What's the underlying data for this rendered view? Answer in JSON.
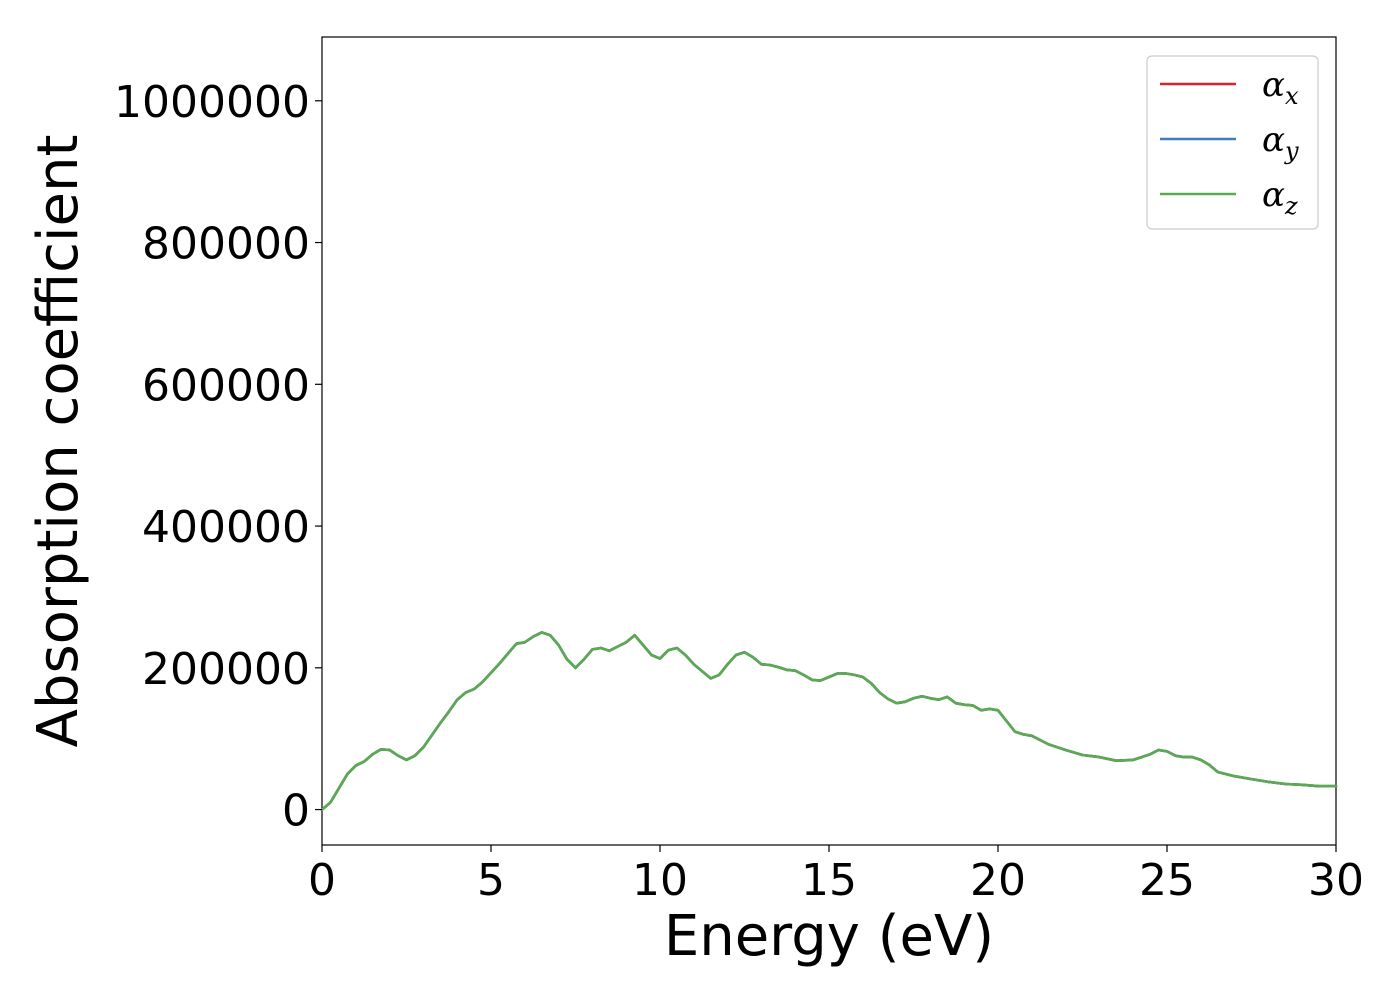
{
  "chart_data": {
    "type": "line",
    "xlabel": "Energy (eV)",
    "ylabel": "Absorption coefficient",
    "xlim": [
      0,
      30
    ],
    "ylim": [
      -50000,
      1090000
    ],
    "xticks": [
      0,
      5,
      10,
      15,
      20,
      25,
      30
    ],
    "xtick_labels": [
      "0",
      "5",
      "10",
      "15",
      "20",
      "25",
      "30"
    ],
    "yticks": [
      0,
      200000,
      400000,
      600000,
      800000,
      1000000
    ],
    "ytick_labels": [
      "0",
      "200000",
      "400000",
      "600000",
      "800000",
      "1000000"
    ],
    "grid": false,
    "legend_position": "top-right",
    "x": [
      0,
      0.25,
      0.5,
      0.75,
      1.0,
      1.25,
      1.5,
      1.75,
      2.0,
      2.25,
      2.5,
      2.75,
      3.0,
      3.25,
      3.5,
      3.75,
      4.0,
      4.25,
      4.5,
      4.75,
      5.0,
      5.25,
      5.5,
      5.75,
      6.0,
      6.25,
      6.5,
      6.75,
      7.0,
      7.25,
      7.5,
      7.75,
      8.0,
      8.25,
      8.5,
      8.75,
      9.0,
      9.25,
      9.5,
      9.75,
      10.0,
      10.25,
      10.5,
      10.75,
      11.0,
      11.25,
      11.5,
      11.75,
      12.0,
      12.25,
      12.5,
      12.75,
      13.0,
      13.25,
      13.5,
      13.75,
      14.0,
      14.25,
      14.5,
      14.75,
      15.0,
      15.25,
      15.5,
      15.75,
      16.0,
      16.25,
      16.5,
      16.75,
      17.0,
      17.25,
      17.5,
      17.75,
      18.0,
      18.25,
      18.5,
      18.75,
      19.0,
      19.25,
      19.5,
      19.75,
      20.0,
      20.25,
      20.5,
      20.75,
      21.0,
      21.25,
      21.5,
      21.75,
      22.0,
      22.5,
      23.0,
      23.5,
      24.0,
      24.25,
      24.5,
      24.75,
      25.0,
      25.25,
      25.5,
      25.75,
      26.0,
      26.25,
      26.5,
      27.0,
      27.5,
      28.0,
      28.5,
      29.0,
      29.5,
      30.0
    ],
    "series": [
      {
        "name": "α_x",
        "name_main": "α",
        "name_sub": "x",
        "color": "#d62728",
        "values": [
          0,
          10000,
          30000,
          50000,
          62000,
          68000,
          78000,
          85000,
          84000,
          76000,
          70000,
          76000,
          88000,
          105000,
          122000,
          138000,
          155000,
          165000,
          170000,
          180000,
          193000,
          206000,
          220000,
          234000,
          236000,
          244000,
          250000,
          246000,
          232000,
          212000,
          200000,
          212000,
          226000,
          228000,
          224000,
          230000,
          236000,
          246000,
          232000,
          218000,
          213000,
          225000,
          228000,
          218000,
          205000,
          195000,
          185000,
          190000,
          205000,
          218000,
          222000,
          215000,
          205000,
          204000,
          201000,
          197000,
          196000,
          190000,
          183000,
          182000,
          187000,
          192000,
          192000,
          190000,
          187000,
          178000,
          165000,
          156000,
          150000,
          152000,
          157000,
          160000,
          157000,
          155000,
          159000,
          150000,
          148000,
          147000,
          140000,
          142000,
          140000,
          125000,
          110000,
          106000,
          104000,
          98000,
          92000,
          88000,
          84000,
          77000,
          74000,
          69000,
          70000,
          74000,
          78000,
          84000,
          82000,
          76000,
          74000,
          74000,
          70000,
          63000,
          53000,
          47000,
          43000,
          39000,
          36000,
          35000,
          33000,
          33000
        ]
      },
      {
        "name": "α_y",
        "name_main": "α",
        "name_sub": "y",
        "color": "#3a7ebc",
        "values": [
          0,
          10000,
          30000,
          50000,
          62000,
          68000,
          78000,
          85000,
          84000,
          76000,
          70000,
          76000,
          88000,
          105000,
          122000,
          138000,
          155000,
          165000,
          170000,
          180000,
          193000,
          206000,
          220000,
          234000,
          236000,
          244000,
          250000,
          246000,
          232000,
          212000,
          200000,
          212000,
          226000,
          228000,
          224000,
          230000,
          236000,
          246000,
          232000,
          218000,
          213000,
          225000,
          228000,
          218000,
          205000,
          195000,
          185000,
          190000,
          205000,
          218000,
          222000,
          215000,
          205000,
          204000,
          201000,
          197000,
          196000,
          190000,
          183000,
          182000,
          187000,
          192000,
          192000,
          190000,
          187000,
          178000,
          165000,
          156000,
          150000,
          152000,
          157000,
          160000,
          157000,
          155000,
          159000,
          150000,
          148000,
          147000,
          140000,
          142000,
          140000,
          125000,
          110000,
          106000,
          104000,
          98000,
          92000,
          88000,
          84000,
          77000,
          74000,
          69000,
          70000,
          74000,
          78000,
          84000,
          82000,
          76000,
          74000,
          74000,
          70000,
          63000,
          53000,
          47000,
          43000,
          39000,
          36000,
          35000,
          33000,
          33000
        ]
      },
      {
        "name": "α_z",
        "name_main": "α",
        "name_sub": "z",
        "color": "#5aaa52",
        "values": [
          0,
          10000,
          30000,
          50000,
          62000,
          68000,
          78000,
          85000,
          84000,
          76000,
          70000,
          76000,
          88000,
          105000,
          122000,
          138000,
          155000,
          165000,
          170000,
          180000,
          193000,
          206000,
          220000,
          234000,
          236000,
          244000,
          250000,
          246000,
          232000,
          212000,
          200000,
          212000,
          226000,
          228000,
          224000,
          230000,
          236000,
          246000,
          232000,
          218000,
          213000,
          225000,
          228000,
          218000,
          205000,
          195000,
          185000,
          190000,
          205000,
          218000,
          222000,
          215000,
          205000,
          204000,
          201000,
          197000,
          196000,
          190000,
          183000,
          182000,
          187000,
          192000,
          192000,
          190000,
          187000,
          178000,
          165000,
          156000,
          150000,
          152000,
          157000,
          160000,
          157000,
          155000,
          159000,
          150000,
          148000,
          147000,
          140000,
          142000,
          140000,
          125000,
          110000,
          106000,
          104000,
          98000,
          92000,
          88000,
          84000,
          77000,
          74000,
          69000,
          70000,
          74000,
          78000,
          84000,
          82000,
          76000,
          74000,
          74000,
          70000,
          63000,
          53000,
          47000,
          43000,
          39000,
          36000,
          35000,
          33000,
          33000
        ]
      }
    ]
  }
}
